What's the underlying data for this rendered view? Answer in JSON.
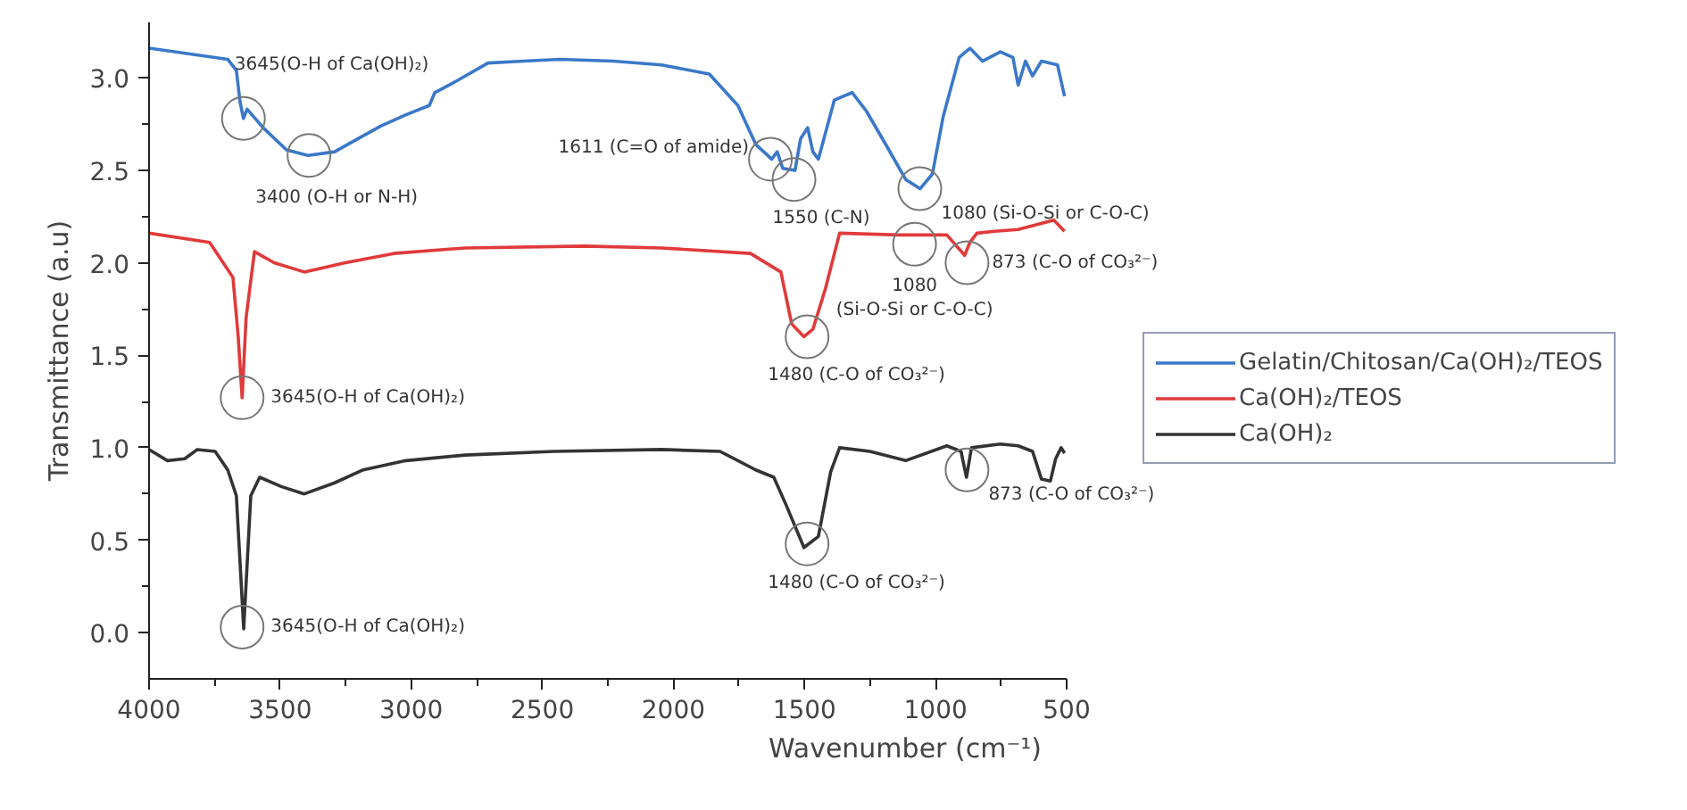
{
  "chart_data": {
    "type": "line",
    "xlabel": "Wavenumber (cm⁻¹)",
    "ylabel": "Transmittance (a.u)",
    "xlim": [
      4000,
      500
    ],
    "ylim": [
      -0.25,
      3.3
    ],
    "xticks": [
      4000,
      3500,
      3000,
      2500,
      2000,
      1500,
      1000,
      500
    ],
    "yticks": [
      {
        "value": 0,
        "label": "0.0"
      },
      {
        "value": 0.5,
        "label": "0.5"
      },
      {
        "value": 1,
        "label": "1.0"
      },
      {
        "value": 1.5,
        "label": "1.5"
      },
      {
        "value": 2,
        "label": "2.0"
      },
      {
        "value": 2.5,
        "label": "2.5"
      },
      {
        "value": 3,
        "label": "3.0"
      }
    ],
    "grid": false,
    "legend": "right",
    "marker": "none",
    "line_style": "solid",
    "series": [
      {
        "name": "Gelatin/Chitosan/Ca(OH)₂/TEOS",
        "color": "#3a78c9",
        "x": [
          4000,
          3700,
          3667,
          3653,
          3640,
          3626,
          3565,
          3476,
          3394,
          3292,
          3204,
          3115,
          3020,
          2931,
          2910,
          2843,
          2707,
          2570,
          2434,
          2230,
          2046,
          1863,
          1754,
          1686,
          1625,
          1604,
          1583,
          1536,
          1515,
          1488,
          1468,
          1447,
          1386,
          1318,
          1264,
          1182,
          1114,
          1059,
          1012,
          971,
          910,
          869,
          821,
          753,
          705,
          685,
          657,
          630,
          596,
          535,
          508
        ],
        "values": [
          3.16,
          3.1,
          3.04,
          2.87,
          2.78,
          2.83,
          2.73,
          2.61,
          2.58,
          2.6,
          2.67,
          2.74,
          2.8,
          2.85,
          2.92,
          2.97,
          3.08,
          3.09,
          3.1,
          3.09,
          3.07,
          3.02,
          2.85,
          2.64,
          2.56,
          2.6,
          2.51,
          2.5,
          2.67,
          2.73,
          2.6,
          2.56,
          2.88,
          2.92,
          2.82,
          2.62,
          2.45,
          2.4,
          2.48,
          2.79,
          3.11,
          3.16,
          3.09,
          3.14,
          3.11,
          2.96,
          3.09,
          3.01,
          3.09,
          3.07,
          2.9
        ]
      },
      {
        "name": "Ca(OH)₂/TEOS",
        "color": "#e03a3a",
        "x": [
          4000,
          3769,
          3680,
          3660,
          3645,
          3630,
          3598,
          3523,
          3408,
          3251,
          3067,
          2795,
          2339,
          2046,
          1706,
          1590,
          1549,
          1502,
          1468,
          1420,
          1366,
          1141,
          957,
          889,
          869,
          842,
          774,
          685,
          549,
          508
        ],
        "values": [
          2.16,
          2.11,
          1.92,
          1.6,
          1.27,
          1.7,
          2.06,
          2.0,
          1.95,
          2.0,
          2.05,
          2.08,
          2.09,
          2.08,
          2.05,
          1.95,
          1.67,
          1.6,
          1.64,
          1.86,
          2.16,
          2.15,
          2.15,
          2.04,
          2.11,
          2.16,
          2.17,
          2.18,
          2.23,
          2.17
        ]
      },
      {
        "name": "Ca(OH)₂",
        "color": "#333333",
        "x": [
          4000,
          3930,
          3864,
          3816,
          3748,
          3700,
          3667,
          3639,
          3612,
          3578,
          3496,
          3408,
          3292,
          3183,
          3020,
          2795,
          2455,
          2046,
          1822,
          1686,
          1617,
          1570,
          1502,
          1447,
          1400,
          1366,
          1250,
          1114,
          957,
          903,
          882,
          863,
          753,
          685,
          630,
          596,
          562,
          542,
          521,
          508
        ],
        "values": [
          0.99,
          0.93,
          0.94,
          0.99,
          0.98,
          0.88,
          0.74,
          0.02,
          0.74,
          0.84,
          0.79,
          0.75,
          0.81,
          0.88,
          0.93,
          0.96,
          0.98,
          0.99,
          0.98,
          0.88,
          0.84,
          0.69,
          0.46,
          0.52,
          0.87,
          1.0,
          0.98,
          0.93,
          1.01,
          0.98,
          0.84,
          1.0,
          1.02,
          1.01,
          0.98,
          0.83,
          0.82,
          0.94,
          1.0,
          0.97
        ]
      }
    ],
    "annotations": [
      {
        "text": "3645(O-H of Ca(OH)₂)",
        "x": 3640,
        "y": 2.78
      },
      {
        "text": "3400 (O-H or N-H)",
        "x": 3390,
        "y": 2.58
      },
      {
        "text": "1611 (C=O of amide)",
        "x": 1630,
        "y": 2.56
      },
      {
        "text": "1550 (C-N)",
        "x": 1540,
        "y": 2.45
      },
      {
        "text": "1080 (Si-O-Si or C-O-C)",
        "x": 1060,
        "y": 2.4
      },
      {
        "text": "1080\n(Si-O-Si or C-O-C)",
        "x": 1080,
        "y": 2.1
      },
      {
        "text": "873 (C-O of CO₃²⁻)",
        "x": 880,
        "y": 2.0
      },
      {
        "text": "1480 (C-O of CO₃²⁻)",
        "x": 1490,
        "y": 1.6
      },
      {
        "text": "3645(O-H of Ca(OH)₂)",
        "x": 3645,
        "y": 1.27
      },
      {
        "text": "873 (C-O of CO₃²⁻)",
        "x": 880,
        "y": 0.88
      },
      {
        "text": "1480 (C-O of CO₃²⁻)",
        "x": 1490,
        "y": 0.48
      },
      {
        "text": "3645(O-H of Ca(OH)₂)",
        "x": 3645,
        "y": 0.03
      }
    ]
  }
}
